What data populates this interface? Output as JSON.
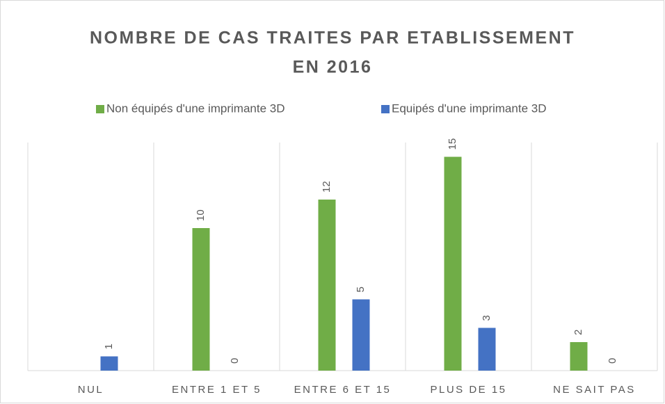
{
  "chart_data": {
    "type": "bar",
    "title": [
      "NOMBRE DE CAS TRAITES PAR ETABLISSEMENT",
      "EN 2016"
    ],
    "categories": [
      "NUL",
      "ENTRE 1 ET 5",
      "ENTRE 6 ET 15",
      "PLUS DE 15",
      "NE SAIT PAS"
    ],
    "series": [
      {
        "name": "Non équipés d'une imprimante 3D",
        "color": "#70ad47",
        "values": [
          null,
          10,
          12,
          15,
          2
        ]
      },
      {
        "name": "Equipés d'une imprimante 3D",
        "color": "#4472c4",
        "values": [
          1,
          0,
          5,
          3,
          0
        ]
      }
    ],
    "ylim": [
      0,
      16
    ],
    "legend": "top"
  }
}
